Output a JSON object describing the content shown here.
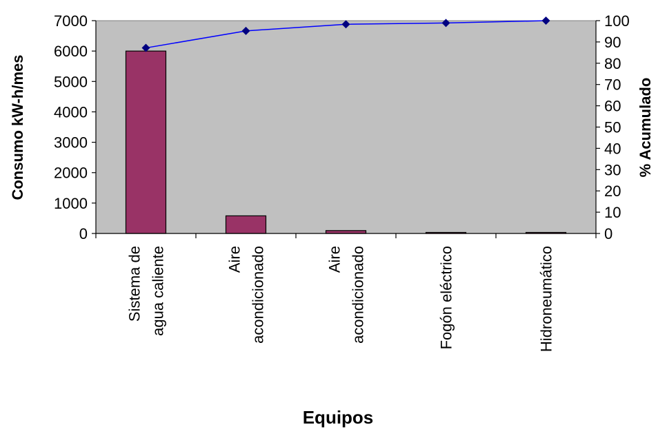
{
  "chart_data": {
    "type": "bar",
    "categories": [
      [
        "Sistema de",
        "agua caliente"
      ],
      [
        "Aire",
        "acondicionado"
      ],
      [
        "Aire",
        "acondicionado"
      ],
      [
        "Fogón eléctrico"
      ],
      [
        "Hidroneumático"
      ]
    ],
    "series": [
      {
        "type": "bar",
        "axis": "left",
        "values": [
          6000,
          580,
          95,
          30,
          25
        ]
      },
      {
        "type": "line",
        "axis": "right",
        "values": [
          87.2,
          95.2,
          98.3,
          98.9,
          100
        ]
      }
    ],
    "xlabel": "Equipos",
    "ylabel": "Consumo kW-h/mes",
    "ylabel_right": "% Acumulado",
    "ylim": [
      0,
      7000
    ],
    "ylim_right": [
      0,
      100
    ],
    "y_ticks": [
      "0",
      "1000",
      "2000",
      "3000",
      "4000",
      "5000",
      "6000",
      "7000"
    ],
    "y_ticks_right": [
      "0",
      "10",
      "20",
      "30",
      "40",
      "50",
      "60",
      "70",
      "80",
      "90",
      "100"
    ],
    "grid": false,
    "colors": {
      "plot_background": "#c0c0c0",
      "bar": "#993366",
      "line": "#0000ff",
      "marker": "#000080"
    }
  }
}
